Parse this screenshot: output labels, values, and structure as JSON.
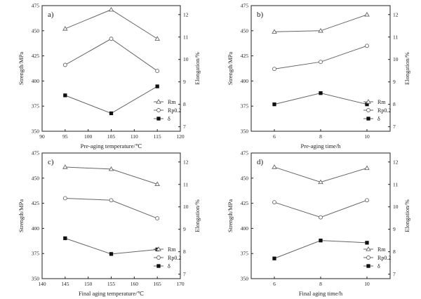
{
  "chart_data": [
    {
      "type": "line",
      "panel_label": "a)",
      "xlabel": "Pre-aging temperature/℃",
      "ylabel": "Strength/MPa",
      "y2label": "Elongation/%",
      "xlim": [
        90,
        120
      ],
      "xticks": [
        90,
        95,
        100,
        105,
        110,
        115,
        120
      ],
      "ylim": [
        350,
        475
      ],
      "yticks": [
        350,
        375,
        400,
        425,
        450,
        475
      ],
      "y2lim": [
        6.8,
        12.4
      ],
      "y2ticks": [
        7,
        8,
        9,
        10,
        11,
        12
      ],
      "x": [
        95,
        105,
        115
      ],
      "series": [
        {
          "name": "Rm",
          "marker": "triangle",
          "axis": "left",
          "values": [
            452,
            471,
            442
          ]
        },
        {
          "name": "Rp0.2",
          "marker": "circle",
          "axis": "left",
          "values": [
            416,
            442,
            410
          ]
        },
        {
          "name": "δ",
          "marker": "square",
          "axis": "right",
          "values": [
            8.4,
            7.6,
            8.8
          ]
        }
      ],
      "legend_position": "bottom-right"
    },
    {
      "type": "line",
      "panel_label": "b)",
      "xlabel": "Pre-aging time/h",
      "ylabel": "Strength/MPa",
      "y2label": "Elongation/%",
      "xlim": [
        5,
        11
      ],
      "xticks": [
        6,
        8,
        10
      ],
      "ylim": [
        350,
        475
      ],
      "yticks": [
        350,
        375,
        400,
        425,
        450,
        475
      ],
      "y2lim": [
        6.8,
        12.4
      ],
      "y2ticks": [
        7,
        8,
        9,
        10,
        11,
        12
      ],
      "x": [
        6,
        8,
        10
      ],
      "series": [
        {
          "name": "Rm",
          "marker": "triangle",
          "axis": "left",
          "values": [
            449,
            450,
            466
          ]
        },
        {
          "name": "Rp0.2",
          "marker": "circle",
          "axis": "left",
          "values": [
            412,
            419,
            435
          ]
        },
        {
          "name": "δ",
          "marker": "square",
          "axis": "right",
          "values": [
            8.0,
            8.5,
            8.0
          ]
        }
      ],
      "legend_position": "bottom-right"
    },
    {
      "type": "line",
      "panel_label": "c)",
      "xlabel": "Final aging temperature/℃",
      "ylabel": "Strength/MPa",
      "y2label": "Elongation/%",
      "xlim": [
        140,
        170
      ],
      "xticks": [
        140,
        145,
        150,
        155,
        160,
        165,
        170
      ],
      "ylim": [
        350,
        475
      ],
      "yticks": [
        350,
        375,
        400,
        425,
        450,
        475
      ],
      "y2lim": [
        6.8,
        12.4
      ],
      "y2ticks": [
        7,
        8,
        9,
        10,
        11,
        12
      ],
      "x": [
        145,
        155,
        165
      ],
      "series": [
        {
          "name": "Rm",
          "marker": "triangle",
          "axis": "left",
          "values": [
            461,
            459,
            444
          ]
        },
        {
          "name": "Rp0.2",
          "marker": "circle",
          "axis": "left",
          "values": [
            430,
            428,
            410
          ]
        },
        {
          "name": "δ",
          "marker": "square",
          "axis": "right",
          "values": [
            8.6,
            7.9,
            8.1
          ]
        }
      ],
      "legend_position": "bottom-right"
    },
    {
      "type": "line",
      "panel_label": "d)",
      "xlabel": "Final aging time/h",
      "ylabel": "Strength/MPa",
      "y2label": "Elongation/%",
      "xlim": [
        5,
        11
      ],
      "xticks": [
        6,
        8,
        10
      ],
      "ylim": [
        350,
        475
      ],
      "yticks": [
        350,
        375,
        400,
        425,
        450,
        475
      ],
      "y2lim": [
        6.8,
        12.4
      ],
      "y2ticks": [
        7,
        8,
        9,
        10,
        11,
        12
      ],
      "x": [
        6,
        8,
        10
      ],
      "series": [
        {
          "name": "Rm",
          "marker": "triangle",
          "axis": "left",
          "values": [
            461,
            446,
            460
          ]
        },
        {
          "name": "Rp0.2",
          "marker": "circle",
          "axis": "left",
          "values": [
            426,
            411,
            428
          ]
        },
        {
          "name": "δ",
          "marker": "square",
          "axis": "right",
          "values": [
            7.7,
            8.5,
            8.4
          ]
        }
      ],
      "legend_position": "bottom-right"
    }
  ]
}
